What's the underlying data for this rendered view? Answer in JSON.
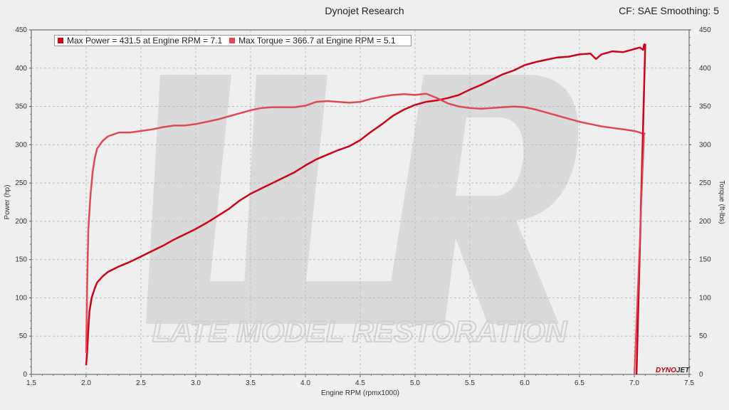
{
  "header": {
    "title": "Dynojet Research",
    "right": "CF: SAE Smoothing: 5"
  },
  "brand": {
    "part1": "DYNO",
    "part2": "JET"
  },
  "colors": {
    "power": "#c8001a",
    "torque": "#dd4a55",
    "grid": "#bdbdbd"
  },
  "chart_data": {
    "type": "line",
    "xlabel": "Engine RPM (rpmx1000)",
    "ylabel": "Power (hp)",
    "y2label": "Torque (ft-lbs)",
    "xlim": [
      1.5,
      7.5
    ],
    "ylim": [
      0,
      450
    ],
    "y2lim": [
      0,
      450
    ],
    "xticks": [
      "1.5",
      "2.0",
      "2.5",
      "3.0",
      "3.5",
      "4.0",
      "4.5",
      "5.0",
      "5.5",
      "6.0",
      "6.5",
      "7.0",
      "7.5"
    ],
    "yticks": [
      "0",
      "50",
      "100",
      "150",
      "200",
      "250",
      "300",
      "350",
      "400",
      "450"
    ],
    "grid": true,
    "legend_position": "top-left",
    "series": [
      {
        "name": "Max Power = 431.5 at Engine RPM = 7.1",
        "axis": "left",
        "x": [
          2.0,
          2.01,
          2.02,
          2.03,
          2.05,
          2.08,
          2.1,
          2.15,
          2.2,
          2.3,
          2.4,
          2.5,
          2.6,
          2.7,
          2.8,
          2.9,
          3.0,
          3.1,
          3.2,
          3.3,
          3.4,
          3.5,
          3.6,
          3.7,
          3.8,
          3.9,
          4.0,
          4.1,
          4.2,
          4.3,
          4.4,
          4.5,
          4.6,
          4.7,
          4.8,
          4.9,
          5.0,
          5.1,
          5.2,
          5.3,
          5.4,
          5.5,
          5.6,
          5.7,
          5.8,
          5.9,
          6.0,
          6.1,
          6.2,
          6.3,
          6.4,
          6.5,
          6.6,
          6.65,
          6.7,
          6.8,
          6.9,
          7.0,
          7.05,
          7.08,
          7.09,
          7.1
        ],
        "values": [
          12,
          30,
          60,
          82,
          100,
          113,
          120,
          128,
          134,
          141,
          147,
          154,
          161,
          168,
          176,
          183,
          190,
          198,
          207,
          216,
          227,
          236,
          243,
          250,
          257,
          264,
          273,
          281,
          287,
          293,
          298,
          306,
          317,
          327,
          338,
          346,
          352,
          356,
          358,
          361,
          365,
          372,
          378,
          385,
          392,
          397,
          404,
          408,
          411,
          414,
          415,
          418,
          419,
          412,
          418,
          422,
          421,
          425,
          427,
          424,
          431,
          431.5
        ]
      },
      {
        "name": "Max Torque = 366.7 at Engine RPM = 5.1",
        "axis": "right",
        "x": [
          2.0,
          2.01,
          2.02,
          2.04,
          2.06,
          2.08,
          2.1,
          2.15,
          2.2,
          2.3,
          2.4,
          2.5,
          2.6,
          2.7,
          2.8,
          2.9,
          3.0,
          3.1,
          3.2,
          3.3,
          3.4,
          3.5,
          3.6,
          3.7,
          3.8,
          3.9,
          4.0,
          4.1,
          4.2,
          4.3,
          4.4,
          4.5,
          4.6,
          4.7,
          4.8,
          4.9,
          5.0,
          5.1,
          5.2,
          5.3,
          5.4,
          5.5,
          5.6,
          5.7,
          5.8,
          5.9,
          6.0,
          6.1,
          6.2,
          6.3,
          6.4,
          6.5,
          6.6,
          6.7,
          6.8,
          6.9,
          7.0,
          7.05,
          7.08,
          7.1
        ],
        "values": [
          28,
          120,
          190,
          235,
          265,
          283,
          295,
          305,
          311,
          316,
          316,
          318,
          320,
          323,
          325,
          325,
          327,
          330,
          333,
          337,
          341,
          345,
          348,
          349,
          349,
          349,
          351,
          356,
          357,
          356,
          355,
          356,
          360,
          363,
          365,
          366,
          365,
          366.7,
          361,
          354,
          350,
          348,
          347,
          348,
          349,
          350,
          349,
          346,
          342,
          338,
          334,
          330,
          327,
          324,
          322,
          320,
          318,
          316,
          314,
          315
        ]
      }
    ]
  }
}
